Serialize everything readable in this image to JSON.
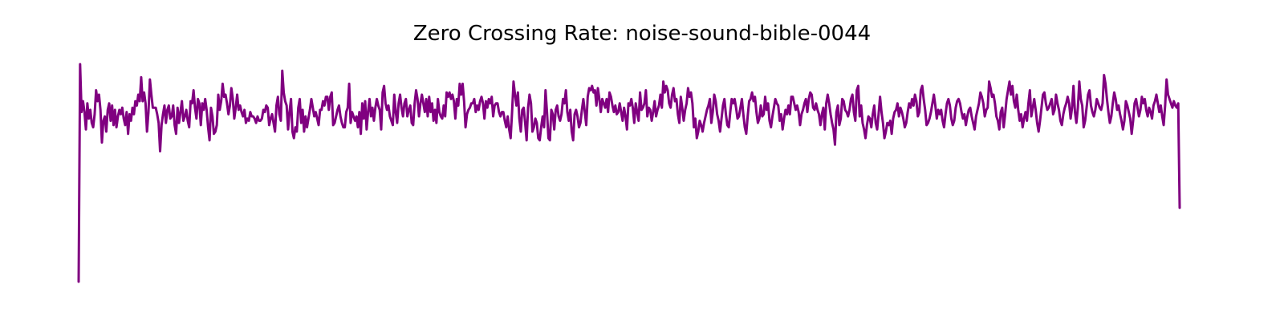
{
  "chart_data": {
    "type": "line",
    "title": "Zero Crossing Rate: noise-sound-bible-0044",
    "xlabel": "",
    "ylabel": "",
    "axes_visible": false,
    "grid": false,
    "color": "#800080",
    "ylim": [
      0,
      1
    ],
    "series": [
      {
        "values": [
          0.0,
          1.0,
          0.78,
          0.83,
          0.78,
          0.7,
          0.82,
          0.75,
          0.79,
          0.73,
          0.71,
          0.77,
          0.88,
          0.83,
          0.86,
          0.79,
          0.64,
          0.74,
          0.76,
          0.69,
          0.79,
          0.82,
          0.74,
          0.81,
          0.72,
          0.79,
          0.71,
          0.76,
          0.79,
          0.77,
          0.8,
          0.75,
          0.72,
          0.78,
          0.68,
          0.77,
          0.74,
          0.8,
          0.77,
          0.83,
          0.81,
          0.86,
          0.83,
          0.94,
          0.83,
          0.87,
          0.82,
          0.69,
          0.78,
          0.93,
          0.86,
          0.8,
          0.8,
          0.8,
          0.77,
          0.73,
          0.6,
          0.72,
          0.77,
          0.81,
          0.73,
          0.79,
          0.81,
          0.75,
          0.76,
          0.81,
          0.72,
          0.68,
          0.8,
          0.73,
          0.78,
          0.83,
          0.74,
          0.76,
          0.79,
          0.74,
          0.71,
          0.83,
          0.82,
          0.88,
          0.8,
          0.75,
          0.84,
          0.82,
          0.72,
          0.82,
          0.79,
          0.84,
          0.79,
          0.71,
          0.65,
          0.8,
          0.76,
          0.68,
          0.69,
          0.72,
          0.86,
          0.79,
          0.83,
          0.91,
          0.85,
          0.86,
          0.82,
          0.77,
          0.81,
          0.89,
          0.84,
          0.75,
          0.8,
          0.86,
          0.79,
          0.81,
          0.78,
          0.76,
          0.79,
          0.73,
          0.75,
          0.74,
          0.78,
          0.76,
          0.76,
          0.75,
          0.73,
          0.76,
          0.74,
          0.74,
          0.75,
          0.79,
          0.78,
          0.81,
          0.8,
          0.72,
          0.75,
          0.77,
          0.73,
          0.69,
          0.81,
          0.85,
          0.77,
          0.74,
          0.97,
          0.87,
          0.83,
          0.81,
          0.7,
          0.78,
          0.84,
          0.69,
          0.66,
          0.71,
          0.69,
          0.8,
          0.84,
          0.73,
          0.79,
          0.69,
          0.76,
          0.71,
          0.75,
          0.79,
          0.84,
          0.8,
          0.76,
          0.78,
          0.75,
          0.72,
          0.79,
          0.79,
          0.83,
          0.81,
          0.85,
          0.85,
          0.79,
          0.85,
          0.87,
          0.72,
          0.73,
          0.76,
          0.79,
          0.81,
          0.76,
          0.73,
          0.71,
          0.71,
          0.78,
          0.8,
          0.91,
          0.73,
          0.78,
          0.76,
          0.74,
          0.76,
          0.71,
          0.78,
          0.68,
          0.82,
          0.75,
          0.83,
          0.7,
          0.78,
          0.84,
          0.76,
          0.8,
          0.74,
          0.8,
          0.84,
          0.81,
          0.79,
          0.7,
          0.87,
          0.9,
          0.82,
          0.79,
          0.81,
          0.76,
          0.74,
          0.72,
          0.86,
          0.78,
          0.73,
          0.82,
          0.86,
          0.8,
          0.76,
          0.82,
          0.84,
          0.76,
          0.79,
          0.81,
          0.73,
          0.72,
          0.82,
          0.88,
          0.84,
          0.76,
          0.82,
          0.86,
          0.82,
          0.78,
          0.84,
          0.76,
          0.85,
          0.78,
          0.82,
          0.74,
          0.79,
          0.73,
          0.84,
          0.78,
          0.76,
          0.75,
          0.81,
          0.76,
          0.87,
          0.85,
          0.87,
          0.84,
          0.86,
          0.83,
          0.75,
          0.84,
          0.81,
          0.91,
          0.86,
          0.91,
          0.83,
          0.71,
          0.77,
          0.79,
          0.8,
          0.82,
          0.82,
          0.84,
          0.78,
          0.81,
          0.79,
          0.83,
          0.85,
          0.82,
          0.75,
          0.83,
          0.8,
          0.84,
          0.82,
          0.85,
          0.76,
          0.81,
          0.82,
          0.82,
          0.78,
          0.76,
          0.78,
          0.78,
          0.74,
          0.71,
          0.76,
          0.7,
          0.66,
          0.78,
          0.92,
          0.86,
          0.81,
          0.87,
          0.75,
          0.69,
          0.79,
          0.8,
          0.73,
          0.65,
          0.8,
          0.86,
          0.82,
          0.69,
          0.71,
          0.75,
          0.73,
          0.66,
          0.65,
          0.71,
          0.76,
          0.71,
          0.88,
          0.78,
          0.66,
          0.65,
          0.79,
          0.77,
          0.7,
          0.79,
          0.81,
          0.76,
          0.74,
          0.77,
          0.84,
          0.82,
          0.88,
          0.78,
          0.74,
          0.79,
          0.69,
          0.65,
          0.77,
          0.79,
          0.76,
          0.71,
          0.73,
          0.79,
          0.84,
          0.78,
          0.72,
          0.85,
          0.89,
          0.88,
          0.9,
          0.87,
          0.88,
          0.81,
          0.89,
          0.84,
          0.78,
          0.84,
          0.82,
          0.8,
          0.84,
          0.78,
          0.87,
          0.85,
          0.81,
          0.78,
          0.81,
          0.77,
          0.78,
          0.82,
          0.78,
          0.74,
          0.8,
          0.76,
          0.7,
          0.82,
          0.81,
          0.84,
          0.8,
          0.73,
          0.82,
          0.78,
          0.74,
          0.87,
          0.79,
          0.8,
          0.82,
          0.88,
          0.76,
          0.8,
          0.79,
          0.74,
          0.78,
          0.83,
          0.76,
          0.79,
          0.81,
          0.86,
          0.8,
          0.92,
          0.87,
          0.9,
          0.88,
          0.82,
          0.8,
          0.86,
          0.89,
          0.83,
          0.84,
          0.77,
          0.73,
          0.85,
          0.8,
          0.74,
          0.79,
          0.82,
          0.89,
          0.85,
          0.87,
          0.82,
          0.71,
          0.75,
          0.66,
          0.69,
          0.74,
          0.72,
          0.69,
          0.73,
          0.76,
          0.79,
          0.81,
          0.84,
          0.73,
          0.78,
          0.86,
          0.83,
          0.77,
          0.74,
          0.69,
          0.75,
          0.81,
          0.84,
          0.77,
          0.72,
          0.71,
          0.78,
          0.84,
          0.82,
          0.84,
          0.8,
          0.75,
          0.76,
          0.8,
          0.84,
          0.77,
          0.71,
          0.68,
          0.76,
          0.83,
          0.84,
          0.87,
          0.83,
          0.85,
          0.78,
          0.73,
          0.75,
          0.81,
          0.76,
          0.77,
          0.85,
          0.79,
          0.82,
          0.74,
          0.71,
          0.76,
          0.8,
          0.84,
          0.82,
          0.81,
          0.74,
          0.77,
          0.7,
          0.75,
          0.79,
          0.77,
          0.81,
          0.77,
          0.85,
          0.85,
          0.82,
          0.79,
          0.81,
          0.78,
          0.72,
          0.77,
          0.79,
          0.82,
          0.84,
          0.78,
          0.84,
          0.87,
          0.86,
          0.8,
          0.79,
          0.82,
          0.79,
          0.77,
          0.72,
          0.77,
          0.8,
          0.7,
          0.82,
          0.86,
          0.82,
          0.77,
          0.73,
          0.7,
          0.63,
          0.78,
          0.81,
          0.72,
          0.75,
          0.84,
          0.83,
          0.79,
          0.78,
          0.76,
          0.79,
          0.84,
          0.86,
          0.78,
          0.74,
          0.88,
          0.9,
          0.76,
          0.81,
          0.73,
          0.7,
          0.66,
          0.72,
          0.76,
          0.75,
          0.71,
          0.77,
          0.81,
          0.73,
          0.7,
          0.77,
          0.85,
          0.78,
          0.73,
          0.66,
          0.69,
          0.73,
          0.72,
          0.74,
          0.68,
          0.75,
          0.78,
          0.79,
          0.82,
          0.76,
          0.8,
          0.78,
          0.75,
          0.71,
          0.73,
          0.78,
          0.82,
          0.8,
          0.84,
          0.81,
          0.86,
          0.83,
          0.76,
          0.78,
          0.88,
          0.9,
          0.84,
          0.79,
          0.72,
          0.73,
          0.75,
          0.78,
          0.82,
          0.86,
          0.81,
          0.75,
          0.79,
          0.77,
          0.79,
          0.74,
          0.71,
          0.77,
          0.82,
          0.84,
          0.81,
          0.75,
          0.72,
          0.74,
          0.8,
          0.83,
          0.84,
          0.82,
          0.78,
          0.75,
          0.77,
          0.72,
          0.76,
          0.79,
          0.8,
          0.76,
          0.73,
          0.7,
          0.76,
          0.79,
          0.82,
          0.87,
          0.85,
          0.82,
          0.76,
          0.79,
          0.8,
          0.92,
          0.89,
          0.85,
          0.86,
          0.82,
          0.76,
          0.74,
          0.7,
          0.78,
          0.8,
          0.71,
          0.77,
          0.84,
          0.88,
          0.92,
          0.86,
          0.9,
          0.83,
          0.8,
          0.86,
          0.79,
          0.74,
          0.77,
          0.71,
          0.75,
          0.78,
          0.74,
          0.82,
          0.88,
          0.76,
          0.8,
          0.84,
          0.79,
          0.73,
          0.69,
          0.74,
          0.8,
          0.86,
          0.87,
          0.82,
          0.79,
          0.8,
          0.82,
          0.84,
          0.77,
          0.79,
          0.86,
          0.82,
          0.79,
          0.74,
          0.72,
          0.77,
          0.8,
          0.82,
          0.85,
          0.82,
          0.75,
          0.8,
          0.9,
          0.78,
          0.73,
          0.8,
          0.92,
          0.84,
          0.81,
          0.71,
          0.74,
          0.8,
          0.86,
          0.88,
          0.81,
          0.78,
          0.76,
          0.79,
          0.84,
          0.82,
          0.8,
          0.79,
          0.82,
          0.95,
          0.91,
          0.84,
          0.78,
          0.73,
          0.76,
          0.82,
          0.87,
          0.84,
          0.79,
          0.81,
          0.77,
          0.74,
          0.7,
          0.74,
          0.83,
          0.81,
          0.78,
          0.75,
          0.68,
          0.74,
          0.82,
          0.84,
          0.8,
          0.76,
          0.79,
          0.85,
          0.82,
          0.84,
          0.79,
          0.76,
          0.8,
          0.78,
          0.75,
          0.81,
          0.83,
          0.86,
          0.82,
          0.78,
          0.81,
          0.76,
          0.72,
          0.81,
          0.93,
          0.86,
          0.84,
          0.82,
          0.8,
          0.83,
          0.81,
          0.8,
          0.82,
          0.34
        ]
      }
    ]
  }
}
